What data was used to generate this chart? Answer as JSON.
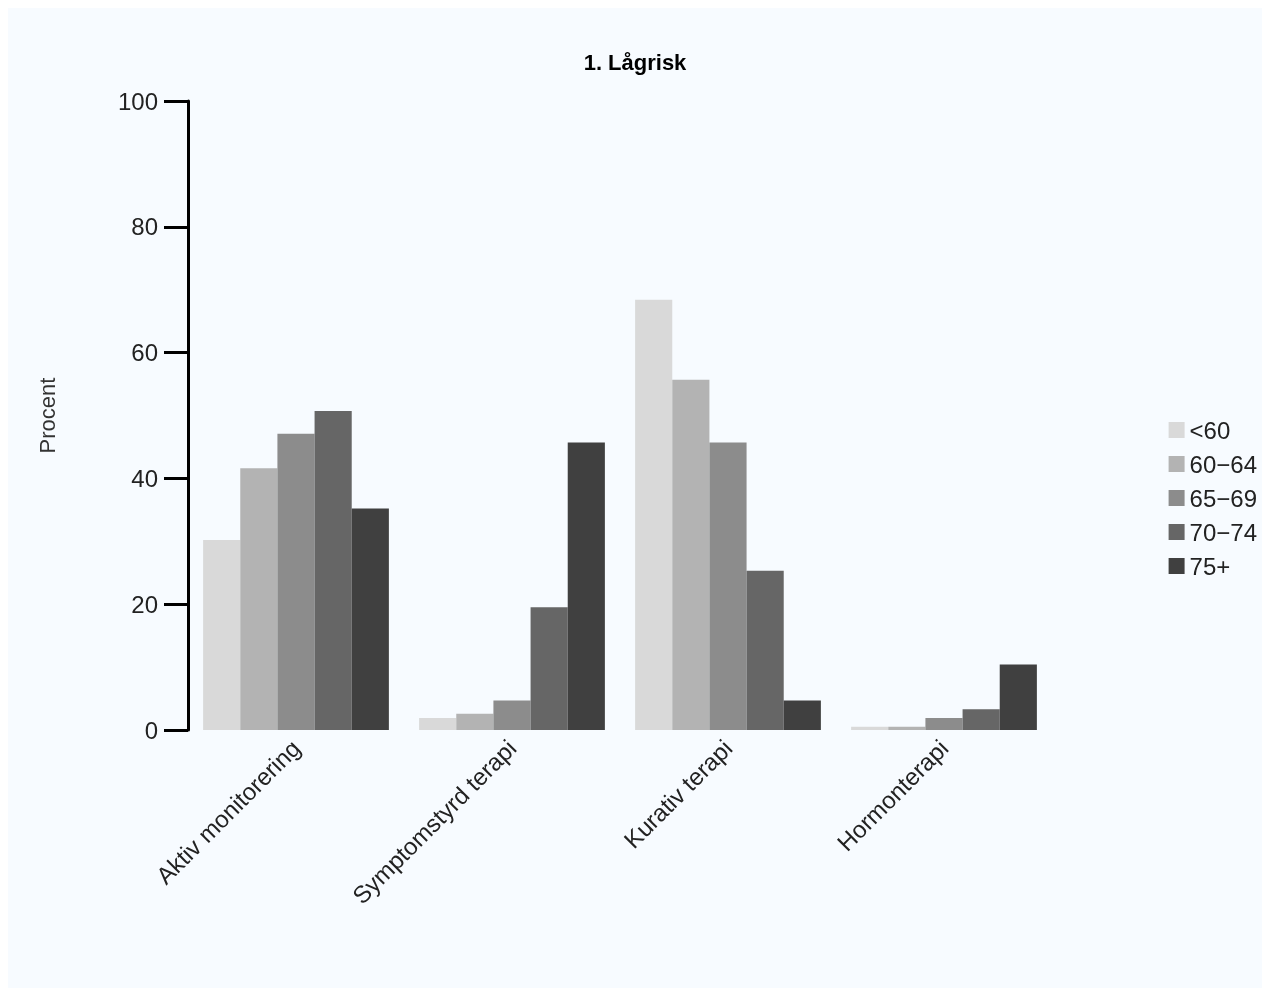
{
  "chart_data": {
    "type": "bar",
    "title": "1. Lågrisk",
    "ylabel": "Procent",
    "categories": [
      "Aktiv monitorering",
      "Symptomstyrd terapi",
      "Kurativ terapi",
      "Hormonterapi"
    ],
    "series": [
      {
        "name": "<60",
        "color": "#d9d9d9",
        "values": [
          30.2,
          1.9,
          68.4,
          0.5
        ]
      },
      {
        "name": "60−64",
        "color": "#b3b3b3",
        "values": [
          41.6,
          2.6,
          55.7,
          0.5
        ]
      },
      {
        "name": "65−69",
        "color": "#8c8c8c",
        "values": [
          47.1,
          4.7,
          45.7,
          1.9
        ]
      },
      {
        "name": "70−74",
        "color": "#666666",
        "values": [
          50.7,
          19.5,
          25.3,
          3.3
        ]
      },
      {
        "name": "75+",
        "color": "#404040",
        "values": [
          35.2,
          45.7,
          4.7,
          10.4
        ]
      }
    ],
    "ylim": [
      0,
      100
    ],
    "yticks": [
      0,
      20,
      40,
      60,
      80,
      100
    ],
    "grid": false,
    "legend": "right"
  }
}
